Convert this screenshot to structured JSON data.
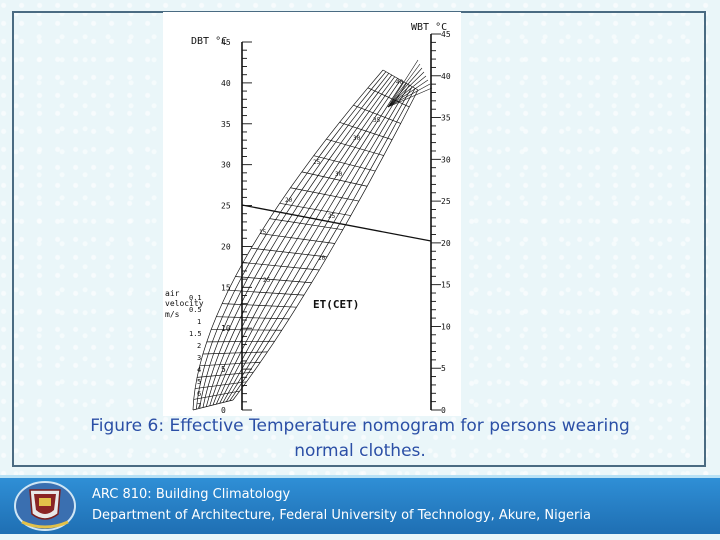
{
  "figure": {
    "dbt_label": "DBT °C",
    "wbt_label": "WBT °C",
    "air_velocity_label": [
      "air",
      "velocity",
      "m/s"
    ],
    "et_label": "ET(CET)",
    "dbt_ticks": [
      "45",
      "40",
      "35",
      "30",
      "25",
      "20",
      "15",
      "10",
      "5",
      "0"
    ],
    "wbt_ticks": [
      "45",
      "40",
      "35",
      "30",
      "25",
      "20",
      "15",
      "10",
      "5",
      "0"
    ],
    "velocity_ticks": [
      "7",
      "6",
      "5",
      "4",
      "3",
      "2",
      "1.5",
      "1",
      "0.5",
      "0.1"
    ],
    "grid_labels": [
      "40",
      "35",
      "30",
      "25",
      "20",
      "15",
      "30",
      "25",
      "20",
      "25"
    ],
    "example_line": {
      "dbt": 25,
      "wbt": 20
    }
  },
  "caption": {
    "line1": "Figure 6: Effective Temperature nomogram for persons wearing",
    "line2": "normal clothes."
  },
  "footer": {
    "course": "ARC 810: Building Climatology",
    "department": "Department of Architecture, Federal University of Technology, Akure, Nigeria"
  }
}
